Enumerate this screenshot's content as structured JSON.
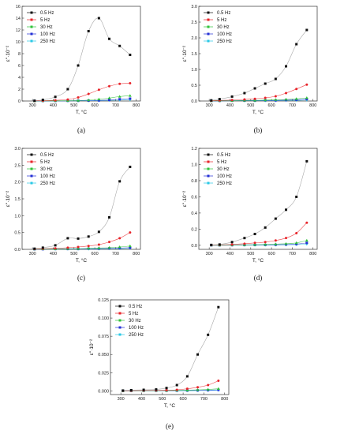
{
  "colors": {
    "s1": "#111111",
    "s2": "#e8242a",
    "s3": "#2fc23a",
    "s4": "#2430d6",
    "s5": "#29c8e6",
    "fit": "#999999"
  },
  "chart_data": [
    {
      "type": "line",
      "panel_label": "(a)",
      "xlabel": "T, °C",
      "ylabel": "ε''·10⁻²",
      "xlim": [
        250,
        820
      ],
      "ylim": [
        0,
        16
      ],
      "xticks": [
        300,
        400,
        500,
        600,
        700,
        800
      ],
      "yticks": [
        0,
        2,
        4,
        6,
        8,
        10,
        12,
        14,
        16
      ],
      "legend_position": "top-left",
      "series": [
        {
          "name": "0.5 Hz",
          "x": [
            310,
            350,
            410,
            470,
            520,
            570,
            620,
            670,
            720,
            770
          ],
          "y": [
            0.05,
            0.2,
            0.7,
            2.0,
            6.0,
            11.8,
            14.0,
            10.5,
            9.3,
            7.8
          ]
        },
        {
          "name": "5 Hz",
          "x": [
            310,
            350,
            410,
            470,
            520,
            570,
            620,
            670,
            720,
            770
          ],
          "y": [
            0.02,
            0.05,
            0.12,
            0.25,
            0.6,
            1.2,
            1.9,
            2.5,
            2.9,
            3.0
          ]
        },
        {
          "name": "30 Hz",
          "x": [
            310,
            350,
            410,
            470,
            520,
            570,
            620,
            670,
            720,
            770
          ],
          "y": [
            0.01,
            0.02,
            0.03,
            0.05,
            0.08,
            0.15,
            0.3,
            0.5,
            0.75,
            0.9
          ]
        },
        {
          "name": "100 Hz",
          "x": [
            310,
            350,
            410,
            470,
            520,
            570,
            620,
            670,
            720,
            770
          ],
          "y": [
            0.01,
            0.01,
            0.02,
            0.03,
            0.04,
            0.06,
            0.1,
            0.18,
            0.3,
            0.4
          ]
        },
        {
          "name": "250 Hz",
          "x": [
            310,
            350,
            410,
            470,
            520,
            570,
            620,
            670,
            720,
            770
          ],
          "y": [
            0.01,
            0.01,
            0.01,
            0.02,
            0.03,
            0.04,
            0.06,
            0.1,
            0.15,
            0.2
          ]
        }
      ]
    },
    {
      "type": "line",
      "panel_label": "(b)",
      "xlabel": "T, °C",
      "ylabel": "ε''·10⁻²",
      "xlim": [
        250,
        820
      ],
      "ylim": [
        0,
        3.0
      ],
      "xticks": [
        300,
        400,
        500,
        600,
        700,
        800
      ],
      "yticks": [
        0,
        0.5,
        1.0,
        1.5,
        2.0,
        2.5,
        3.0
      ],
      "legend_position": "top-left",
      "series": [
        {
          "name": "0.5 Hz",
          "x": [
            310,
            350,
            410,
            470,
            520,
            570,
            620,
            670,
            720,
            770
          ],
          "y": [
            0.02,
            0.06,
            0.14,
            0.25,
            0.4,
            0.55,
            0.7,
            1.1,
            1.8,
            2.25
          ]
        },
        {
          "name": "5 Hz",
          "x": [
            310,
            350,
            410,
            470,
            520,
            570,
            620,
            670,
            720,
            770
          ],
          "y": [
            0.01,
            0.02,
            0.03,
            0.05,
            0.07,
            0.1,
            0.15,
            0.25,
            0.38,
            0.52
          ]
        },
        {
          "name": "30 Hz",
          "x": [
            310,
            350,
            410,
            470,
            520,
            570,
            620,
            670,
            720,
            770
          ],
          "y": [
            0.005,
            0.01,
            0.01,
            0.02,
            0.02,
            0.03,
            0.04,
            0.05,
            0.07,
            0.1
          ]
        },
        {
          "name": "100 Hz",
          "x": [
            310,
            350,
            410,
            470,
            520,
            570,
            620,
            670,
            720,
            770
          ],
          "y": [
            0.005,
            0.005,
            0.01,
            0.01,
            0.01,
            0.02,
            0.02,
            0.03,
            0.04,
            0.06
          ]
        },
        {
          "name": "250 Hz",
          "x": [
            310,
            350,
            410,
            470,
            520,
            570,
            620,
            670,
            720,
            770
          ],
          "y": [
            0.005,
            0.005,
            0.005,
            0.01,
            0.01,
            0.01,
            0.01,
            0.02,
            0.02,
            0.03
          ]
        }
      ]
    },
    {
      "type": "line",
      "panel_label": "(c)",
      "xlabel": "T, °C",
      "ylabel": "ε''·10⁻²",
      "xlim": [
        250,
        820
      ],
      "ylim": [
        0,
        3.0
      ],
      "xticks": [
        300,
        400,
        500,
        600,
        700,
        800
      ],
      "yticks": [
        0,
        0.5,
        1.0,
        1.5,
        2.0,
        2.5,
        3.0
      ],
      "legend_position": "top-left",
      "series": [
        {
          "name": "0.5 Hz",
          "x": [
            310,
            350,
            410,
            470,
            520,
            570,
            620,
            670,
            720,
            770
          ],
          "y": [
            0.02,
            0.05,
            0.12,
            0.33,
            0.32,
            0.38,
            0.52,
            0.95,
            2.02,
            2.45
          ]
        },
        {
          "name": "5 Hz",
          "x": [
            310,
            350,
            410,
            470,
            520,
            570,
            620,
            670,
            720,
            770
          ],
          "y": [
            0.01,
            0.02,
            0.03,
            0.05,
            0.07,
            0.1,
            0.14,
            0.22,
            0.33,
            0.5
          ]
        },
        {
          "name": "30 Hz",
          "x": [
            310,
            350,
            410,
            470,
            520,
            570,
            620,
            670,
            720,
            770
          ],
          "y": [
            0.005,
            0.01,
            0.01,
            0.02,
            0.02,
            0.03,
            0.04,
            0.05,
            0.07,
            0.1
          ]
        },
        {
          "name": "100 Hz",
          "x": [
            310,
            350,
            410,
            470,
            520,
            570,
            620,
            670,
            720,
            770
          ],
          "y": [
            0.005,
            0.005,
            0.01,
            0.01,
            0.01,
            0.02,
            0.02,
            0.03,
            0.04,
            0.05
          ]
        },
        {
          "name": "250 Hz",
          "x": [
            310,
            350,
            410,
            470,
            520,
            570,
            620,
            670,
            720,
            770
          ],
          "y": [
            0.005,
            0.005,
            0.005,
            0.01,
            0.01,
            0.01,
            0.01,
            0.02,
            0.02,
            0.03
          ]
        }
      ]
    },
    {
      "type": "line",
      "panel_label": "(d)",
      "xlabel": "T, °C",
      "ylabel": "ε''·10⁻²",
      "xlim": [
        250,
        820
      ],
      "ylim": [
        -0.05,
        1.2
      ],
      "xticks": [
        300,
        400,
        500,
        600,
        700,
        800
      ],
      "yticks": [
        0.0,
        0.2,
        0.4,
        0.6,
        0.8,
        1.0,
        1.2
      ],
      "legend_position": "top-left",
      "series": [
        {
          "name": "0.5 Hz",
          "x": [
            310,
            350,
            410,
            470,
            520,
            570,
            620,
            670,
            720,
            770
          ],
          "y": [
            0.005,
            0.01,
            0.04,
            0.09,
            0.14,
            0.22,
            0.33,
            0.44,
            0.6,
            1.04
          ]
        },
        {
          "name": "5 Hz",
          "x": [
            310,
            350,
            410,
            470,
            520,
            570,
            620,
            670,
            720,
            770
          ],
          "y": [
            0.002,
            0.005,
            0.01,
            0.02,
            0.03,
            0.04,
            0.06,
            0.09,
            0.15,
            0.28
          ]
        },
        {
          "name": "30 Hz",
          "x": [
            310,
            350,
            410,
            470,
            520,
            570,
            620,
            670,
            720,
            770
          ],
          "y": [
            0.001,
            0.002,
            0.004,
            0.006,
            0.008,
            0.01,
            0.015,
            0.02,
            0.03,
            0.06
          ]
        },
        {
          "name": "100 Hz",
          "x": [
            310,
            350,
            410,
            470,
            520,
            570,
            620,
            670,
            720,
            770
          ],
          "y": [
            0.001,
            0.001,
            0.002,
            0.003,
            0.004,
            0.005,
            0.007,
            0.01,
            0.015,
            0.03
          ]
        },
        {
          "name": "250 Hz",
          "x": [
            310,
            350,
            410,
            470,
            520,
            570,
            620,
            670,
            720,
            770
          ],
          "y": [
            0.001,
            0.001,
            0.001,
            0.002,
            0.002,
            0.003,
            0.004,
            0.006,
            0.008,
            0.015
          ]
        }
      ]
    },
    {
      "type": "line",
      "panel_label": "(e)",
      "xlabel": "T, °C",
      "ylabel": "ε''·10⁻²",
      "xlim": [
        250,
        820
      ],
      "ylim": [
        -0.005,
        0.125
      ],
      "xticks": [
        300,
        400,
        500,
        600,
        700,
        800
      ],
      "yticks": [
        0.0,
        0.025,
        0.05,
        0.075,
        0.1,
        0.125
      ],
      "ytick_labels": [
        "0.000",
        "0.025",
        "0.050",
        "0.075",
        "0.100",
        "0.125"
      ],
      "legend_position": "top-left",
      "series": [
        {
          "name": "0.5 Hz",
          "x": [
            310,
            350,
            410,
            470,
            520,
            570,
            620,
            670,
            720,
            770
          ],
          "y": [
            0.0005,
            0.001,
            0.0015,
            0.002,
            0.004,
            0.008,
            0.02,
            0.05,
            0.077,
            0.115
          ]
        },
        {
          "name": "5 Hz",
          "x": [
            310,
            350,
            410,
            470,
            520,
            570,
            620,
            670,
            720,
            770
          ],
          "y": [
            0.0002,
            0.0003,
            0.0005,
            0.0007,
            0.001,
            0.0015,
            0.003,
            0.005,
            0.008,
            0.014
          ]
        },
        {
          "name": "30 Hz",
          "x": [
            310,
            350,
            410,
            470,
            520,
            570,
            620,
            670,
            720,
            770
          ],
          "y": [
            0.0001,
            0.0002,
            0.0003,
            0.0004,
            0.0005,
            0.0007,
            0.001,
            0.0015,
            0.002,
            0.003
          ]
        },
        {
          "name": "100 Hz",
          "x": [
            310,
            350,
            410,
            470,
            520,
            570,
            620,
            670,
            720,
            770
          ],
          "y": [
            0.0001,
            0.0001,
            0.0002,
            0.0002,
            0.0003,
            0.0004,
            0.0005,
            0.0007,
            0.001,
            0.0015
          ]
        },
        {
          "name": "250 Hz",
          "x": [
            310,
            350,
            410,
            470,
            520,
            570,
            620,
            670,
            720,
            770
          ],
          "y": [
            0.0001,
            0.0001,
            0.0001,
            0.0001,
            0.0002,
            0.0002,
            0.0003,
            0.0004,
            0.0005,
            0.0008
          ]
        }
      ]
    }
  ]
}
